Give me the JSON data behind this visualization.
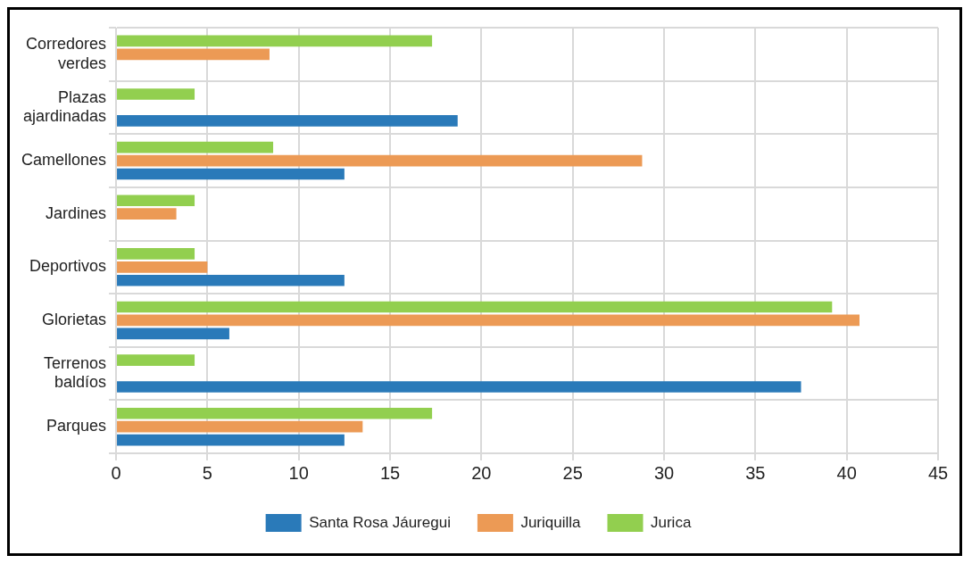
{
  "chart_data": {
    "type": "bar",
    "orientation": "horizontal",
    "categories": [
      "Corredores verdes",
      "Plazas ajardinadas",
      "Camellones",
      "Jardines",
      "Deportivos",
      "Glorietas",
      "Terrenos baldíos",
      "Parques"
    ],
    "series": [
      {
        "name": "Santa Rosa Jáuregui",
        "color": "#2a7ab9",
        "values": [
          null,
          18.7,
          12.5,
          null,
          12.5,
          6.2,
          37.5,
          12.5
        ]
      },
      {
        "name": "Juriquilla",
        "color": "#ec9a55",
        "values": [
          8.4,
          null,
          28.8,
          3.3,
          5.0,
          40.7,
          null,
          13.5
        ]
      },
      {
        "name": "Jurica",
        "color": "#92cf4f",
        "values": [
          17.3,
          4.3,
          8.6,
          4.3,
          4.3,
          39.2,
          4.3,
          17.3
        ]
      }
    ],
    "xlim": [
      0,
      45
    ],
    "xticks": [
      0,
      5,
      10,
      15,
      20,
      25,
      30,
      35,
      40,
      45
    ],
    "grid": true,
    "legend": "bottom"
  }
}
